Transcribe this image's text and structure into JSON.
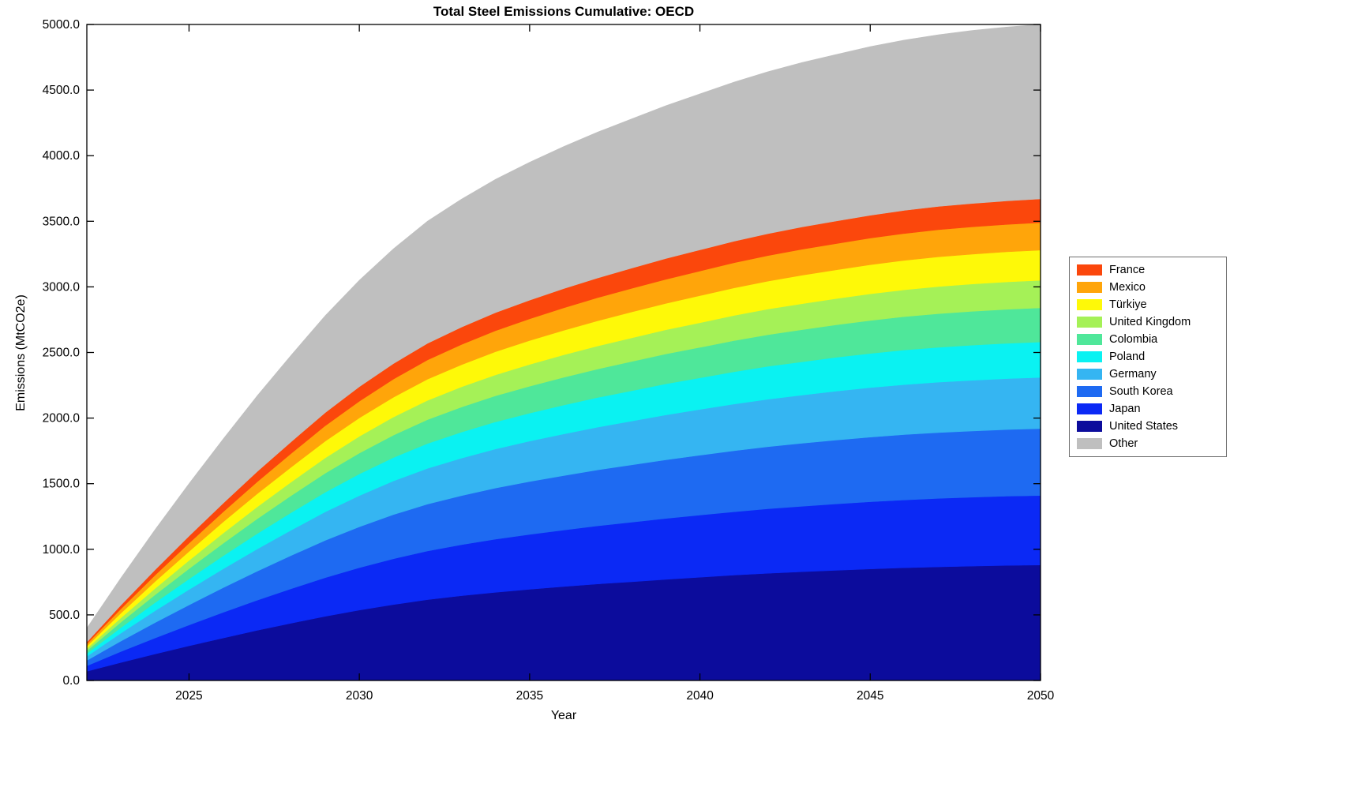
{
  "chart_data": {
    "type": "area",
    "stacked": true,
    "title": "Total Steel Emissions Cumulative: OECD",
    "xlabel": "Year",
    "ylabel": "Emissions (MtCO2e)",
    "xlim": [
      2022,
      2050
    ],
    "ylim": [
      0,
      5000
    ],
    "grid": false,
    "legend_position": "right-outside",
    "frame_color": "#000000",
    "xticks": [
      2025,
      2030,
      2035,
      2040,
      2045,
      2050
    ],
    "xtick_labels": [
      "2025",
      "2030",
      "2035",
      "2040",
      "2045",
      "2050"
    ],
    "yticks": [
      0,
      500,
      1000,
      1500,
      2000,
      2500,
      3000,
      3500,
      4000,
      4500,
      5000
    ],
    "ytick_labels": [
      "0.0",
      "500.0",
      "1000.0",
      "1500.0",
      "2000.0",
      "2500.0",
      "3000.0",
      "3500.0",
      "4000.0",
      "4500.0",
      "5000.0"
    ],
    "x": [
      2022,
      2023,
      2024,
      2025,
      2026,
      2027,
      2028,
      2029,
      2030,
      2031,
      2032,
      2033,
      2034,
      2035,
      2036,
      2037,
      2038,
      2039,
      2040,
      2041,
      2042,
      2043,
      2044,
      2045,
      2046,
      2047,
      2048,
      2049,
      2050
    ],
    "series": [
      {
        "name": "United States",
        "color": "#0c0c9c",
        "values": [
          70,
          137,
          202,
          264,
          324,
          382,
          437,
          489,
          537,
          579,
          616,
          646,
          672,
          695,
          716,
          736,
          753,
          771,
          787,
          803,
          817,
          829,
          840,
          850,
          859,
          866,
          872,
          877,
          880
        ]
      },
      {
        "name": "Japan",
        "color": "#0b29f5",
        "values": [
          42,
          83,
          122,
          159,
          195,
          230,
          263,
          295,
          323,
          349,
          371,
          389,
          405,
          419,
          431,
          443,
          454,
          464,
          474,
          483,
          492,
          499,
          506,
          512,
          517,
          522,
          525,
          528,
          530
        ]
      },
      {
        "name": "South Korea",
        "color": "#1e6af2",
        "values": [
          41,
          80,
          117,
          153,
          188,
          221,
          253,
          284,
          311,
          336,
          357,
          374,
          390,
          403,
          415,
          426,
          437,
          447,
          456,
          465,
          473,
          480,
          487,
          493,
          498,
          502,
          505,
          508,
          510
        ]
      },
      {
        "name": "Germany",
        "color": "#35b5f2",
        "values": [
          31,
          61,
          90,
          117,
          144,
          169,
          193,
          217,
          238,
          257,
          273,
          286,
          298,
          308,
          317,
          326,
          334,
          342,
          349,
          356,
          362,
          367,
          372,
          377,
          381,
          384,
          386,
          388,
          390
        ]
      },
      {
        "name": "Poland",
        "color": "#0af2f2",
        "values": [
          22,
          42,
          62,
          81,
          99,
          117,
          134,
          150,
          165,
          178,
          189,
          198,
          206,
          213,
          220,
          226,
          231,
          237,
          241,
          246,
          251,
          254,
          258,
          261,
          264,
          266,
          268,
          269,
          270
        ]
      },
      {
        "name": "Colombia",
        "color": "#4fe79a",
        "values": [
          21,
          41,
          60,
          78,
          96,
          113,
          129,
          145,
          159,
          171,
          182,
          191,
          199,
          205,
          212,
          217,
          223,
          228,
          232,
          237,
          241,
          245,
          248,
          251,
          254,
          256,
          258,
          259,
          260
        ]
      },
      {
        "name": "United Kingdom",
        "color": "#a5f157",
        "values": [
          17,
          33,
          48,
          63,
          77,
          91,
          104,
          117,
          128,
          138,
          147,
          154,
          160,
          166,
          171,
          176,
          180,
          184,
          188,
          192,
          195,
          198,
          200,
          203,
          205,
          207,
          208,
          209,
          210
        ]
      },
      {
        "name": "Türkiye",
        "color": "#fef908",
        "values": [
          18,
          36,
          53,
          69,
          85,
          100,
          114,
          128,
          140,
          151,
          161,
          169,
          176,
          182,
          187,
          192,
          197,
          201,
          206,
          210,
          213,
          217,
          219,
          222,
          224,
          226,
          228,
          229,
          230
        ]
      },
      {
        "name": "Mexico",
        "color": "#ffa50a",
        "values": [
          17,
          33,
          48,
          63,
          77,
          91,
          104,
          117,
          128,
          138,
          147,
          154,
          160,
          166,
          171,
          176,
          180,
          184,
          188,
          192,
          195,
          198,
          200,
          203,
          205,
          207,
          208,
          209,
          210
        ]
      },
      {
        "name": "France",
        "color": "#fb470c",
        "values": [
          14,
          28,
          41,
          54,
          66,
          78,
          89,
          100,
          110,
          118,
          126,
          132,
          138,
          142,
          147,
          150,
          154,
          158,
          161,
          164,
          167,
          170,
          172,
          174,
          176,
          177,
          178,
          179,
          180
        ]
      },
      {
        "name": "Other",
        "color": "#bfbfbf",
        "values": [
          106,
          207,
          306,
          399,
          489,
          577,
          660,
          739,
          811,
          875,
          931,
          976,
          1016,
          1051,
          1083,
          1112,
          1138,
          1165,
          1189,
          1213,
          1234,
          1253,
          1269,
          1285,
          1298,
          1309,
          1318,
          1325,
          1330
        ]
      }
    ],
    "legend_order": [
      "France",
      "Mexico",
      "Türkiye",
      "United Kingdom",
      "Colombia",
      "Poland",
      "Germany",
      "South Korea",
      "Japan",
      "United States",
      "Other"
    ]
  }
}
